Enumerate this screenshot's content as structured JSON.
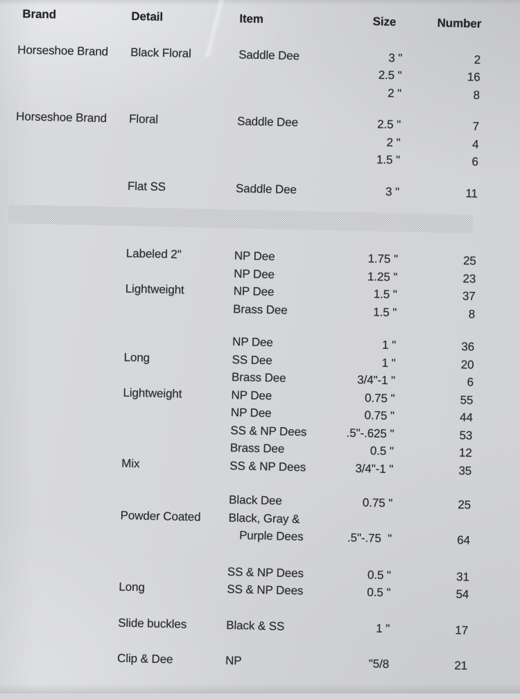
{
  "document": {
    "type": "scanned inventory table",
    "header": {
      "brand": "Brand",
      "detail": "Detail",
      "item": "Item",
      "size": "Size",
      "number": "Number"
    },
    "groups": [
      {
        "rows": [
          {
            "brand": "Horseshoe Brand",
            "detail": "Black Floral",
            "item": "Saddle Dee",
            "size": "3 \"",
            "number": "2"
          },
          {
            "size": "2.5 \"",
            "number": "16"
          },
          {
            "size": "2 \"",
            "number": "8"
          }
        ]
      },
      {
        "rows": [
          {
            "brand": "Horseshoe Brand",
            "detail": "Floral",
            "item": "Saddle Dee",
            "size": "2.5 \"",
            "number": "7"
          },
          {
            "size": "2 \"",
            "number": "4"
          },
          {
            "size": "1.5 \"",
            "number": "6"
          }
        ]
      },
      {
        "rows": [
          {
            "detail": "Flat SS",
            "item": "Saddle Dee",
            "size": "3 \"",
            "number": "11"
          }
        ]
      },
      {
        "type": "redacted"
      },
      {
        "rows": [
          {
            "detail": "Labeled 2\"",
            "item": "NP Dee",
            "size": "1.75 \"",
            "number": "25"
          },
          {
            "item": "NP Dee",
            "size": "1.25 \"",
            "number": "23"
          },
          {
            "detail": "Lightweight",
            "item": "NP Dee",
            "size": "1.5 \"",
            "number": "37"
          },
          {
            "item": "Brass Dee",
            "size": "1.5 \"",
            "number": "8"
          }
        ]
      },
      {
        "rows": [
          {
            "item": "NP Dee",
            "size": "1 \"",
            "number": "36"
          },
          {
            "detail": "Long",
            "item": "SS Dee",
            "size": "1 \"",
            "number": "20"
          },
          {
            "item": "Brass Dee",
            "size": "3/4\"-1 \"",
            "number": "6"
          },
          {
            "detail": "Lightweight",
            "item": "NP Dee",
            "size": "0.75 \"",
            "number": "55"
          },
          {
            "item": "NP Dee",
            "size": "0.75 \"",
            "number": "44"
          },
          {
            "item": "SS & NP Dees",
            "size": ".5\"-.625 \"",
            "number": "53"
          },
          {
            "item": "Brass Dee",
            "size": "0.5 \"",
            "number": "12"
          },
          {
            "detail": "Mix",
            "item": "SS & NP Dees",
            "size": "3/4\"-1 \"",
            "number": "35"
          }
        ]
      },
      {
        "rows": [
          {
            "item": "Black Dee",
            "size": "0.75 \"",
            "number": "25"
          },
          {
            "detail": "Powder Coated",
            "item": "Black, Gray &"
          },
          {
            "item": "Purple Dees",
            "item_indent": true,
            "size": ".5\"-.75  \"",
            "number": "64"
          }
        ]
      },
      {
        "rows": [
          {
            "item": "SS & NP Dees",
            "size": "0.5 \"",
            "number": "31"
          },
          {
            "detail": "Long",
            "item": "SS & NP Dees",
            "size": "0.5 \"",
            "number": "54"
          }
        ]
      },
      {
        "rows": [
          {
            "detail": "Slide buckles",
            "item": "Black & SS",
            "size": "1 \"",
            "number": "17"
          }
        ]
      },
      {
        "rows": [
          {
            "detail": "Clip & Dee",
            "item": "NP",
            "size": "\"5/8",
            "number": "21"
          }
        ]
      }
    ]
  },
  "colors": {
    "paper": "#d5d6d8",
    "ink": "#2a2b2d",
    "hatch_dark": "#b4b5b8",
    "hatch_light": "#e3e4e6"
  }
}
